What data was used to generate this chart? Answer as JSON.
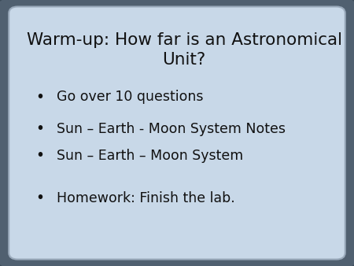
{
  "title_line1": "Warm-up: How far is an Astronomical",
  "title_line2": "Unit?",
  "bullet_items": [
    "Go over 10 questions",
    "Sun – Earth - Moon System Notes",
    "Sun – Earth – Moon System",
    "",
    "Homework: Finish the lab."
  ],
  "bg_color": "#c8d8e8",
  "dark_border_color": "#3a4a58",
  "light_edge_color": "#8a9aaa",
  "text_color": "#111111",
  "title_fontsize": 15.5,
  "body_fontsize": 12.5,
  "bullet_char": "•"
}
